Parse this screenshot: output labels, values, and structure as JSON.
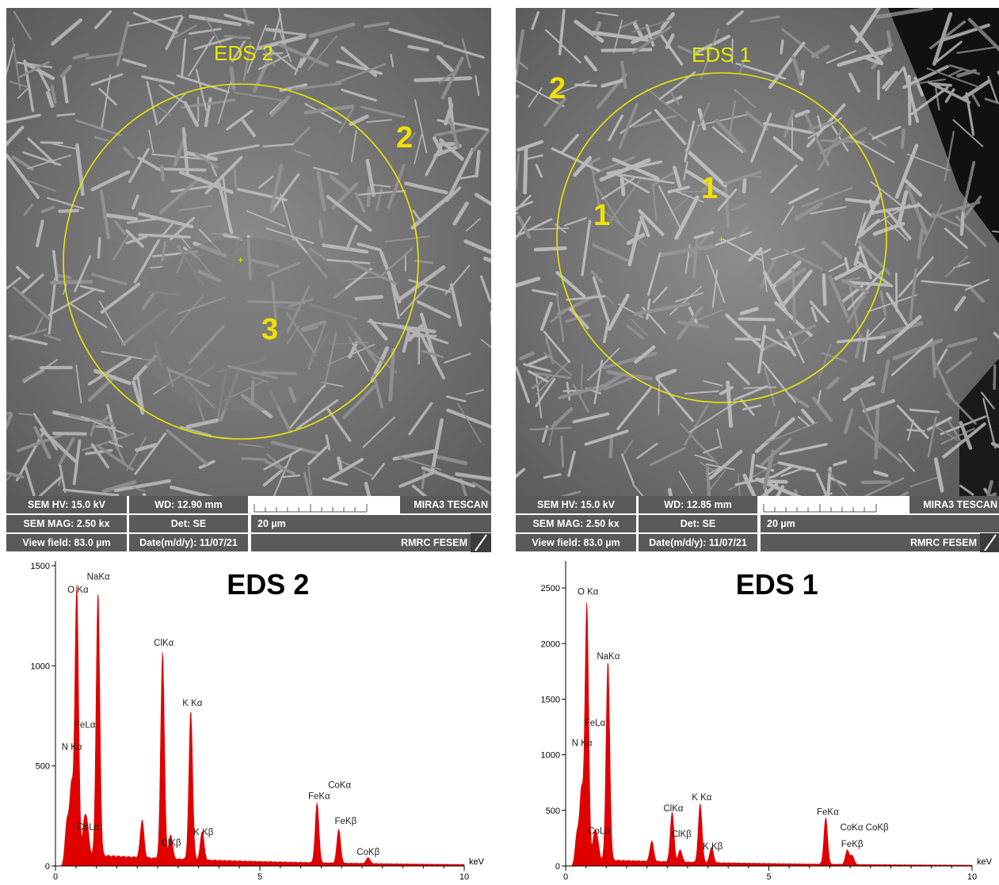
{
  "sem_panels": [
    {
      "eds_label": "EDS 2",
      "region_markers": [
        "2",
        "3"
      ],
      "info": {
        "hv": "SEM HV: 15.0 kV",
        "wd": "WD: 12.90 mm",
        "brand": "MIRA3 TESCAN",
        "mag": "SEM MAG: 2.50 kx",
        "det": "Det: SE",
        "scale": "20 µm",
        "view": "View field: 83.0 µm",
        "date": "Date(m/d/y): 11/07/21",
        "lab": "RMRC  FESEM"
      }
    },
    {
      "eds_label": "EDS 1",
      "region_markers": [
        "2",
        "1",
        "1"
      ],
      "info": {
        "hv": "SEM HV: 15.0 kV",
        "wd": "WD: 12.85 mm",
        "brand": "MIRA3 TESCAN",
        "mag": "SEM MAG: 2.50 kx",
        "det": "Det: SE",
        "scale": "20 µm",
        "view": "View field: 83.0 µm",
        "date": "Date(m/d/y): 11/07/21",
        "lab": "RMRC  FESEM"
      }
    }
  ],
  "colors": {
    "spectrum": "#e00000",
    "circle": "#e8e800",
    "marker": "#f0e000",
    "info_bg": "#5a5a5a"
  },
  "chart_data": [
    {
      "type": "area",
      "title": "EDS 2",
      "xlabel": "keV",
      "ylabel": "",
      "xlim": [
        0,
        10
      ],
      "ylim": [
        0,
        1500
      ],
      "x_ticks": [
        0,
        5,
        10
      ],
      "y_ticks": [
        0,
        500,
        1000,
        1500
      ],
      "background": 55,
      "peaks": [
        {
          "x": 0.28,
          "y": 200
        },
        {
          "x": 0.39,
          "y": 360
        },
        {
          "x": 0.52,
          "y": 1345
        },
        {
          "x": 0.71,
          "y": 155
        },
        {
          "x": 0.78,
          "y": 120
        },
        {
          "x": 1.04,
          "y": 1315
        },
        {
          "x": 2.12,
          "y": 190
        },
        {
          "x": 2.62,
          "y": 1035
        },
        {
          "x": 2.82,
          "y": 120
        },
        {
          "x": 3.31,
          "y": 745
        },
        {
          "x": 3.59,
          "y": 145
        },
        {
          "x": 6.4,
          "y": 300
        },
        {
          "x": 6.93,
          "y": 170
        },
        {
          "x": 7.65,
          "y": 30
        }
      ],
      "annotations": [
        {
          "text": "NaKα",
          "x": 1.05,
          "y": 1430
        },
        {
          "text": "O Kα",
          "x": 0.55,
          "y": 1365
        },
        {
          "text": "ClKα",
          "x": 2.65,
          "y": 1100
        },
        {
          "text": "K Kα",
          "x": 3.35,
          "y": 800
        },
        {
          "text": "FeLα",
          "x": 0.72,
          "y": 690
        },
        {
          "text": "N Kα",
          "x": 0.4,
          "y": 580
        },
        {
          "text": "CoKα",
          "x": 6.95,
          "y": 390
        },
        {
          "text": "FeKα",
          "x": 6.45,
          "y": 335
        },
        {
          "text": "FeKβ",
          "x": 7.1,
          "y": 210
        },
        {
          "text": "CoLα",
          "x": 0.8,
          "y": 180
        },
        {
          "text": "K Kβ",
          "x": 3.62,
          "y": 155
        },
        {
          "text": "ClKβ",
          "x": 2.83,
          "y": 100
        },
        {
          "text": "CoKβ",
          "x": 7.65,
          "y": 55
        }
      ]
    },
    {
      "type": "area",
      "title": "EDS 1",
      "xlabel": "keV",
      "ylabel": "",
      "xlim": [
        0,
        10
      ],
      "ylim": [
        0,
        2700
      ],
      "x_ticks": [
        0,
        5,
        10
      ],
      "y_ticks": [
        0,
        500,
        1000,
        1500,
        2000,
        2500
      ],
      "background": 55,
      "peaks": [
        {
          "x": 0.28,
          "y": 270
        },
        {
          "x": 0.39,
          "y": 640
        },
        {
          "x": 0.52,
          "y": 2310
        },
        {
          "x": 0.71,
          "y": 215
        },
        {
          "x": 0.78,
          "y": 150
        },
        {
          "x": 1.04,
          "y": 1790
        },
        {
          "x": 2.12,
          "y": 185
        },
        {
          "x": 2.62,
          "y": 450
        },
        {
          "x": 2.82,
          "y": 110
        },
        {
          "x": 3.31,
          "y": 530
        },
        {
          "x": 3.59,
          "y": 140
        },
        {
          "x": 6.4,
          "y": 420
        },
        {
          "x": 6.93,
          "y": 130
        },
        {
          "x": 7.05,
          "y": 80
        }
      ],
      "annotations": [
        {
          "text": "O Kα",
          "x": 0.55,
          "y": 2440
        },
        {
          "text": "NaKα",
          "x": 1.05,
          "y": 1860
        },
        {
          "text": "FeLα",
          "x": 0.72,
          "y": 1260
        },
        {
          "text": "N Kα",
          "x": 0.4,
          "y": 1080
        },
        {
          "text": "K Kα",
          "x": 3.35,
          "y": 590
        },
        {
          "text": "ClKα",
          "x": 2.65,
          "y": 490
        },
        {
          "text": "FeKα",
          "x": 6.45,
          "y": 460
        },
        {
          "text": "CoKα CoKβ",
          "x": 7.35,
          "y": 320
        },
        {
          "text": "ClKβ",
          "x": 2.85,
          "y": 260
        },
        {
          "text": "CoLα",
          "x": 0.82,
          "y": 290
        },
        {
          "text": "FeKβ",
          "x": 7.05,
          "y": 170
        },
        {
          "text": "K Kβ",
          "x": 3.62,
          "y": 150
        }
      ]
    }
  ]
}
